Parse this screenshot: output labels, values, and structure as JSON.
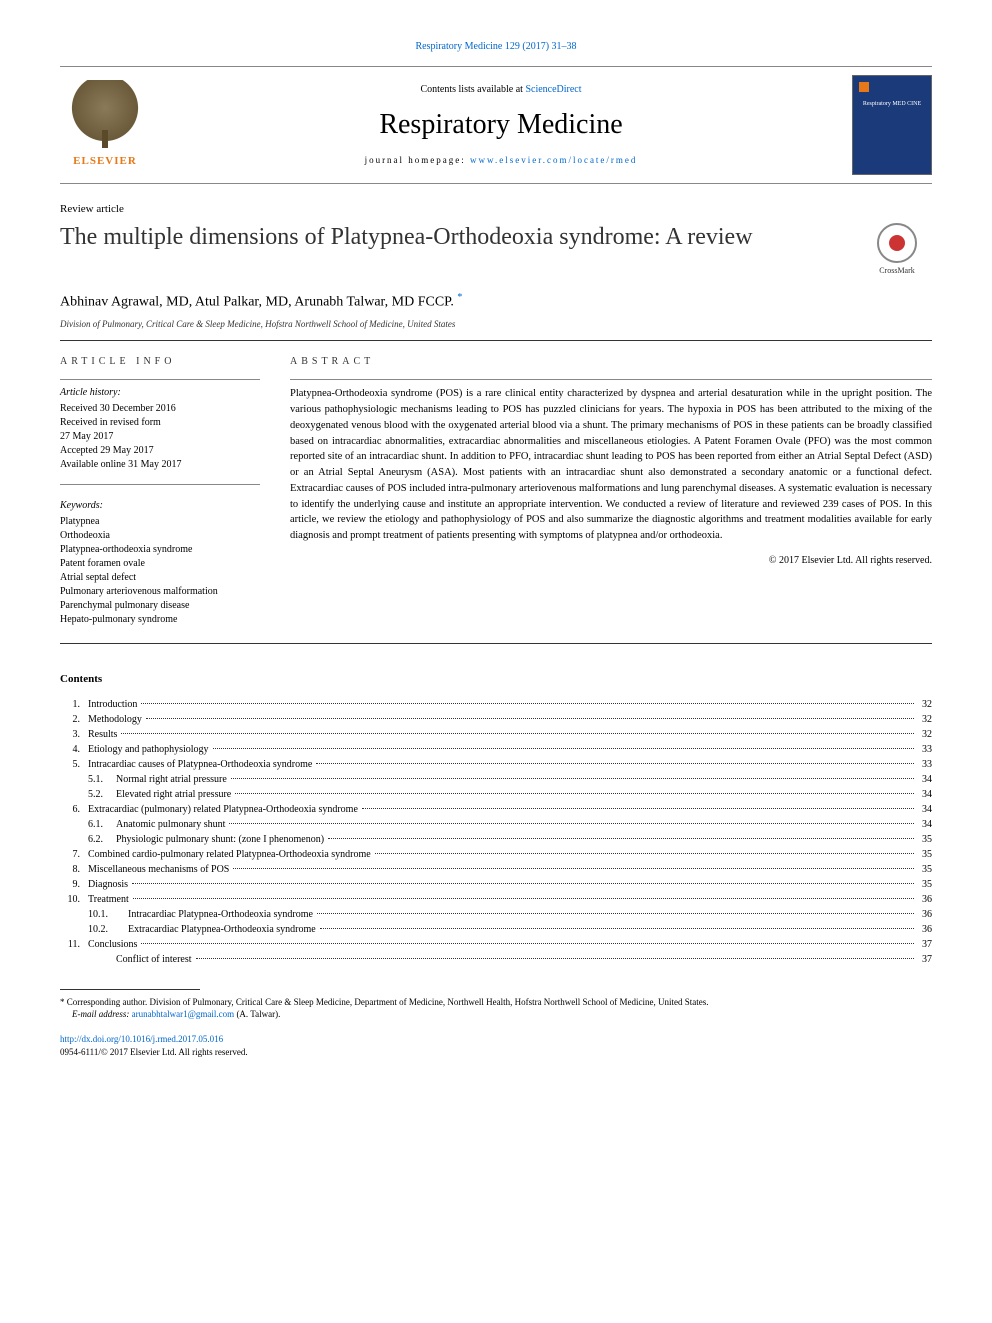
{
  "citation": "Respiratory Medicine 129 (2017) 31–38",
  "header": {
    "contents_prefix": "Contents lists available at ",
    "contents_link": "ScienceDirect",
    "journal_name": "Respiratory Medicine",
    "homepage_label": "journal homepage: ",
    "homepage_url": "www.elsevier.com/locate/rmed",
    "publisher_name": "ELSEVIER",
    "cover_text": "Respiratory MED CINE"
  },
  "article": {
    "type_label": "Review article",
    "title": "The multiple dimensions of Platypnea-Orthodeoxia syndrome: A review",
    "crossmark_label": "CrossMark",
    "authors": "Abhinav Agrawal, MD, Atul Palkar, MD, Arunabh Talwar, MD FCCP. ",
    "corr_marker": "*",
    "affiliation": "Division of Pulmonary, Critical Care & Sleep Medicine, Hofstra Northwell School of Medicine, United States"
  },
  "info": {
    "section_label": "ARTICLE INFO",
    "history_label": "Article history:",
    "history": [
      "Received 30 December 2016",
      "Received in revised form",
      "27 May 2017",
      "Accepted 29 May 2017",
      "Available online 31 May 2017"
    ],
    "keywords_label": "Keywords:",
    "keywords": [
      "Platypnea",
      "Orthodeoxia",
      "Platypnea-orthodeoxia syndrome",
      "Patent foramen ovale",
      "Atrial septal defect",
      "Pulmonary arteriovenous malformation",
      "Parenchymal pulmonary disease",
      "Hepato-pulmonary syndrome"
    ]
  },
  "abstract": {
    "label": "ABSTRACT",
    "text": "Platypnea-Orthodeoxia syndrome (POS) is a rare clinical entity characterized by dyspnea and arterial desaturation while in the upright position. The various pathophysiologic mechanisms leading to POS has puzzled clinicians for years. The hypoxia in POS has been attributed to the mixing of the deoxygenated venous blood with the oxygenated arterial blood via a shunt. The primary mechanisms of POS in these patients can be broadly classified based on intracardiac abnormalities, extracardiac abnormalities and miscellaneous etiologies. A Patent Foramen Ovale (PFO) was the most common reported site of an intracardiac shunt. In addition to PFO, intracardiac shunt leading to POS has been reported from either an Atrial Septal Defect (ASD) or an Atrial Septal Aneurysm (ASA). Most patients with an intracardiac shunt also demonstrated a secondary anatomic or a functional defect. Extracardiac causes of POS included intra-pulmonary arteriovenous malformations and lung parenchymal diseases. A systematic evaluation is necessary to identify the underlying cause and institute an appropriate intervention. We conducted a review of literature and reviewed 239 cases of POS. In this article, we review the etiology and pathophysiology of POS and also summarize the diagnostic algorithms and treatment modalities available for early diagnosis and prompt treatment of patients presenting with symptoms of platypnea and/or orthodeoxia.",
    "copyright": "© 2017 Elsevier Ltd. All rights reserved."
  },
  "contents": {
    "heading": "Contents",
    "items": [
      {
        "num": "1.",
        "level": 0,
        "title": "Introduction",
        "page": "32"
      },
      {
        "num": "2.",
        "level": 0,
        "title": "Methodology",
        "page": "32"
      },
      {
        "num": "3.",
        "level": 0,
        "title": "Results",
        "page": "32"
      },
      {
        "num": "4.",
        "level": 0,
        "title": "Etiology and pathophysiology",
        "page": "33"
      },
      {
        "num": "5.",
        "level": 0,
        "title": "Intracardiac causes of Platypnea-Orthodeoxia syndrome",
        "page": "33"
      },
      {
        "num": "5.1.",
        "level": 1,
        "title": "Normal right atrial pressure",
        "page": "34"
      },
      {
        "num": "5.2.",
        "level": 1,
        "title": "Elevated right atrial pressure",
        "page": "34"
      },
      {
        "num": "6.",
        "level": 0,
        "title": "Extracardiac (pulmonary) related Platypnea-Orthodeoxia syndrome",
        "page": "34"
      },
      {
        "num": "6.1.",
        "level": 1,
        "title": "Anatomic pulmonary shunt",
        "page": "34"
      },
      {
        "num": "6.2.",
        "level": 1,
        "title": "Physiologic pulmonary shunt: (zone I phenomenon)",
        "page": "35"
      },
      {
        "num": "7.",
        "level": 0,
        "title": "Combined cardio-pulmonary related Platypnea-Orthodeoxia syndrome",
        "page": "35"
      },
      {
        "num": "8.",
        "level": 0,
        "title": "Miscellaneous mechanisms of POS",
        "page": "35"
      },
      {
        "num": "9.",
        "level": 0,
        "title": "Diagnosis",
        "page": "35"
      },
      {
        "num": "10.",
        "level": 0,
        "title": "Treatment",
        "page": "36"
      },
      {
        "num": "10.1.",
        "level": 2,
        "title": "Intracardiac Platypnea-Orthodeoxia syndrome",
        "page": "36"
      },
      {
        "num": "10.2.",
        "level": 2,
        "title": "Extracardiac Platypnea-Orthodeoxia syndrome",
        "page": "36"
      },
      {
        "num": "11.",
        "level": 0,
        "title": "Conclusions",
        "page": "37"
      },
      {
        "num": "",
        "level": 1,
        "title": "Conflict of interest",
        "page": "37"
      }
    ]
  },
  "footer": {
    "corr_note_marker": "*",
    "corr_note": " Corresponding author. Division of Pulmonary, Critical Care & Sleep Medicine, Department of Medicine, Northwell Health, Hofstra Northwell School of Medicine, United States.",
    "email_label": "E-mail address: ",
    "email": "arunabhtalwar1@gmail.com",
    "email_suffix": " (A. Talwar).",
    "doi": "http://dx.doi.org/10.1016/j.rmed.2017.05.016",
    "issn_line": "0954-6111/© 2017 Elsevier Ltd. All rights reserved."
  },
  "colors": {
    "link": "#0066cc",
    "text": "#000000",
    "accent": "#e77817",
    "cover_bg": "#1a3a7a"
  }
}
